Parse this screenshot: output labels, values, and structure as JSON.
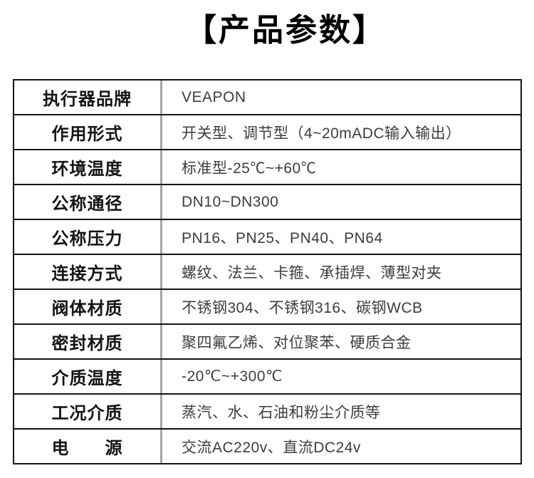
{
  "page": {
    "title": "【产品参数】"
  },
  "table": {
    "rows": [
      {
        "label": "执行器品牌",
        "value": "VEAPON"
      },
      {
        "label": "作用形式",
        "value": "开关型、调节型（4~20mADC输入输出）"
      },
      {
        "label": "环境温度",
        "value": "标准型-25℃~+60℃"
      },
      {
        "label": "公称通径",
        "value": "DN10~DN300"
      },
      {
        "label": "公称压力",
        "value": "PN16、PN25、PN40、PN64"
      },
      {
        "label": "连接方式",
        "value": "螺纹、法兰、卡箍、承插焊、薄型对夹"
      },
      {
        "label": "阀体材质",
        "value": "不锈钢304、不锈钢316、碳钢WCB"
      },
      {
        "label": "密封材质",
        "value": "聚四氟乙烯、对位聚苯、硬质合金"
      },
      {
        "label": "介质温度",
        "value": "-20℃~+300℃"
      },
      {
        "label": "工况介质",
        "value": "蒸汽、水、石油和粉尘介质等"
      },
      {
        "label": "电　　源",
        "value": "交流AC220v、直流DC24v"
      }
    ]
  }
}
